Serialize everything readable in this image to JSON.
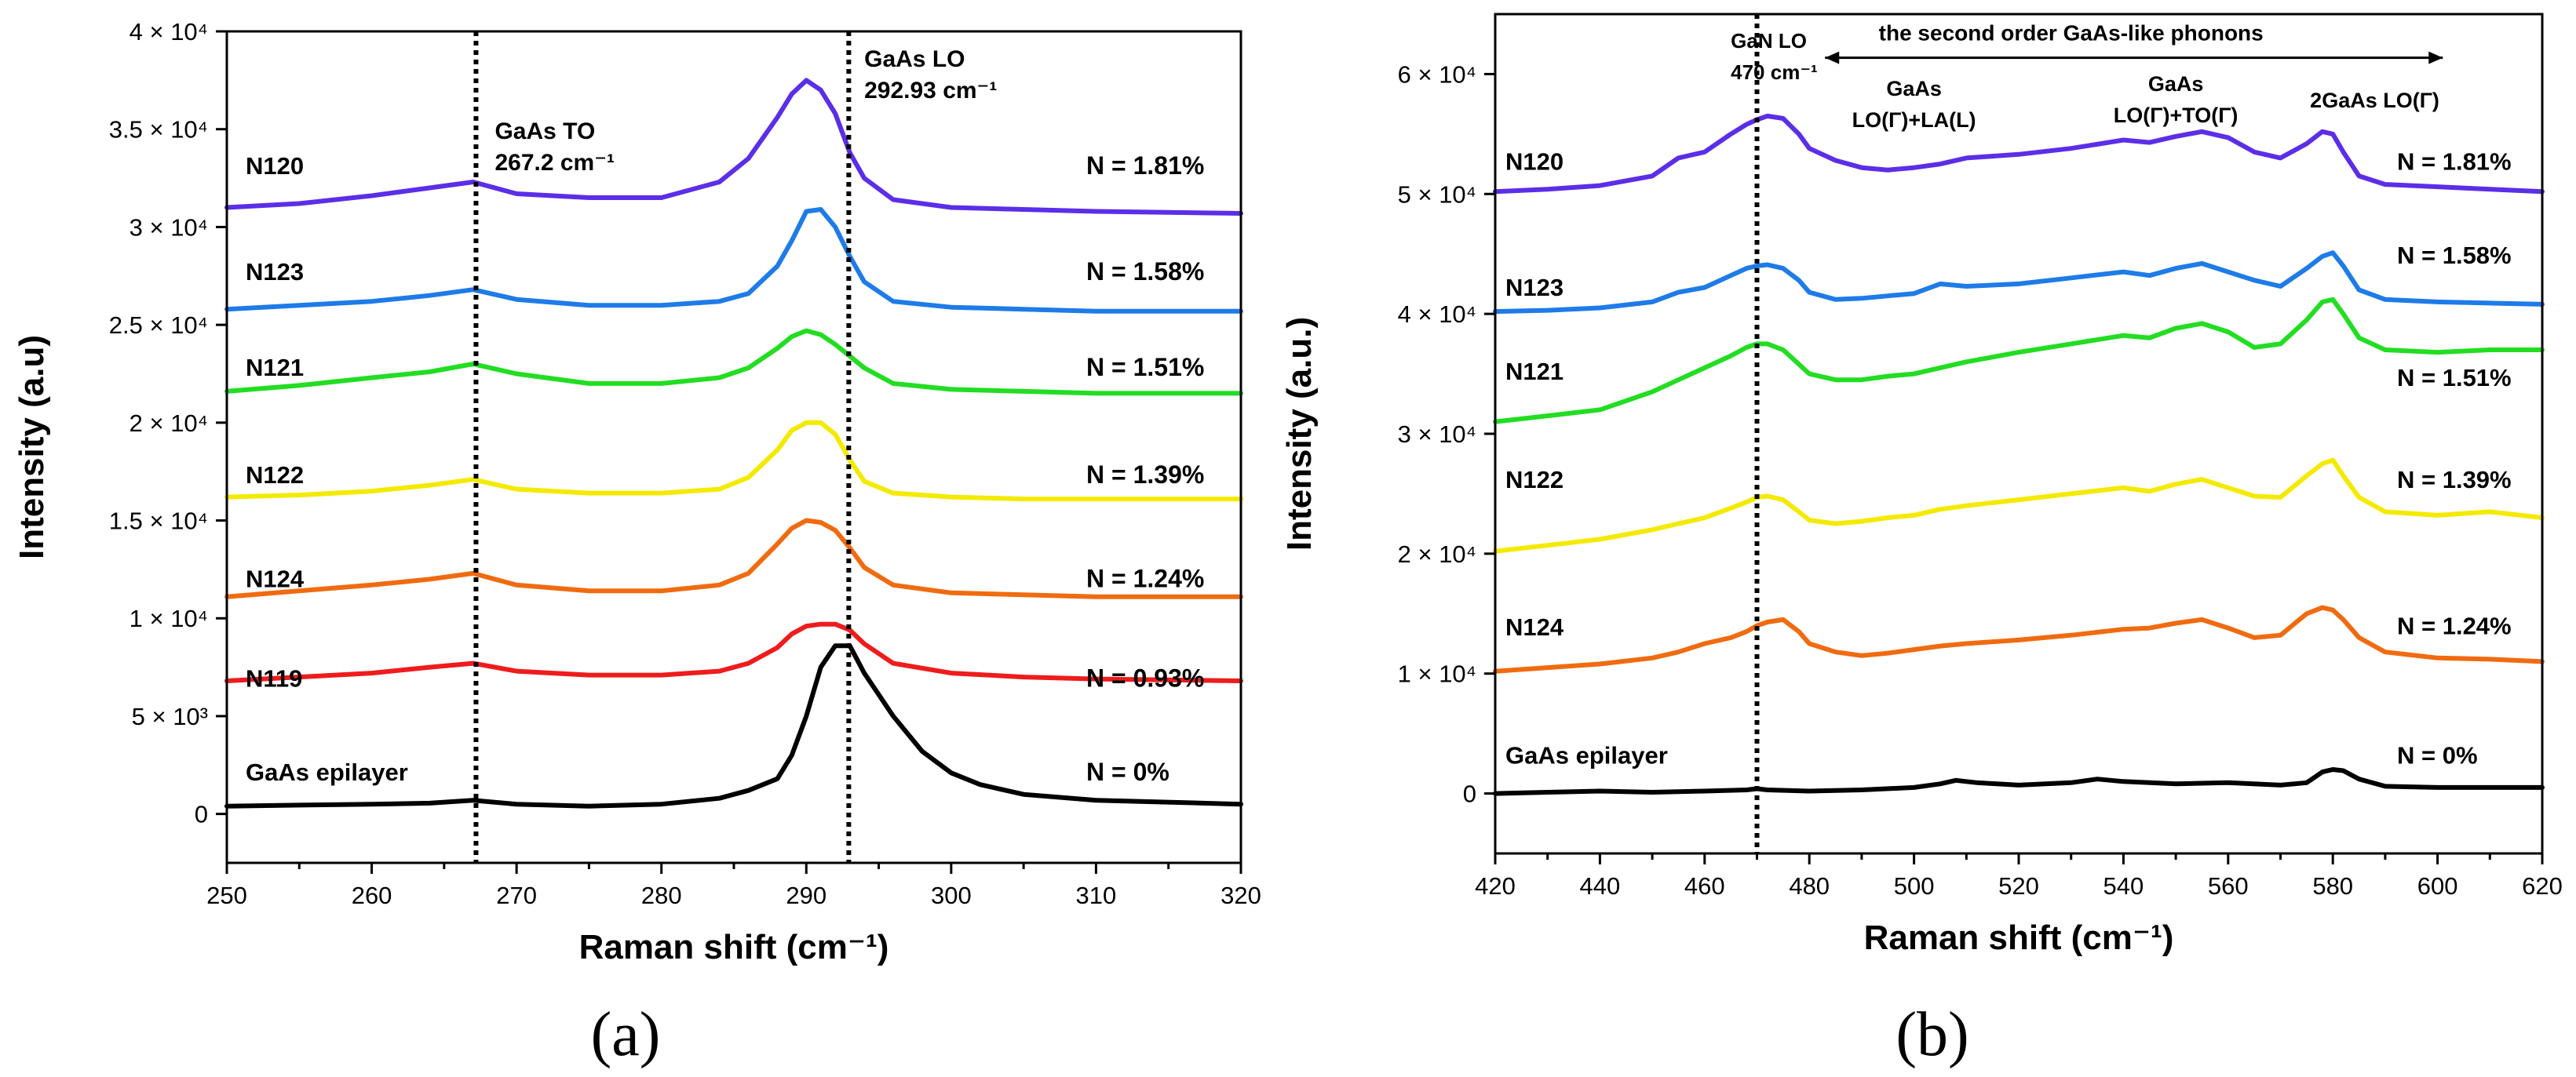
{
  "figure_labels": [
    "(a)",
    "(b)"
  ],
  "chart_data": [
    {
      "type": "line",
      "xlabel": "Raman shift (cm⁻¹)",
      "ylabel": "Intensity (a.u)",
      "xlim": [
        250,
        320
      ],
      "ylim": [
        -2500,
        40000
      ],
      "x_ticks": [
        250,
        260,
        270,
        280,
        290,
        300,
        310,
        320
      ],
      "x_tick_labels": [
        "250",
        "260",
        "270",
        "280",
        "290",
        "300",
        "310",
        "320"
      ],
      "y_ticks": [
        0,
        5000,
        10000,
        15000,
        20000,
        25000,
        30000,
        35000,
        40000
      ],
      "y_tick_labels": [
        "0",
        "5 × 10³",
        "1 × 10⁴",
        "1.5 × 10⁴",
        "2 × 10⁴",
        "2.5 × 10⁴",
        "3 × 10⁴",
        "3.5 × 10⁴",
        "4 × 10⁴"
      ],
      "grid": false,
      "ref_lines": [
        {
          "x": 267.2,
          "label_lines": [
            "GaAs TO",
            "267.2 cm⁻¹"
          ],
          "label_pos": [
            268.5,
            34500
          ]
        },
        {
          "x": 292.93,
          "label_lines": [
            "GaAs LO",
            "292.93 cm⁻¹"
          ],
          "label_pos": [
            294,
            38200
          ]
        }
      ],
      "series": [
        {
          "name": "N120",
          "n_label": "N = 1.81%",
          "color": "#5b2ee8",
          "x": [
            250,
            255,
            260,
            264,
            267,
            270,
            275,
            280,
            284,
            286,
            288,
            289,
            290,
            291,
            292,
            293,
            294,
            296,
            300,
            305,
            310,
            320
          ],
          "y": [
            31000,
            31200,
            31600,
            32000,
            32300,
            31700,
            31500,
            31500,
            32300,
            33500,
            35600,
            36800,
            37500,
            37000,
            35800,
            33800,
            32500,
            31400,
            31000,
            30900,
            30800,
            30700
          ],
          "label_y": 32700,
          "n_label_y": 32700
        },
        {
          "name": "N123",
          "n_label": "N = 1.58%",
          "color": "#1e7be8",
          "x": [
            250,
            255,
            260,
            264,
            267,
            270,
            275,
            280,
            284,
            286,
            288,
            289,
            290,
            291,
            292,
            293,
            294,
            296,
            300,
            305,
            310,
            320
          ],
          "y": [
            25800,
            26000,
            26200,
            26500,
            26800,
            26300,
            26000,
            26000,
            26200,
            26600,
            28000,
            29300,
            30800,
            30900,
            30000,
            28500,
            27200,
            26200,
            25900,
            25800,
            25700,
            25700
          ],
          "label_y": 27300,
          "n_label_y": 27300
        },
        {
          "name": "N121",
          "n_label": "N = 1.51%",
          "color": "#22dd22",
          "x": [
            250,
            255,
            260,
            264,
            267,
            270,
            275,
            280,
            284,
            286,
            288,
            289,
            290,
            291,
            292,
            293,
            294,
            296,
            300,
            305,
            310,
            320
          ],
          "y": [
            21600,
            21900,
            22300,
            22600,
            23000,
            22500,
            22000,
            22000,
            22300,
            22800,
            23800,
            24400,
            24700,
            24500,
            24000,
            23400,
            22800,
            22000,
            21700,
            21600,
            21500,
            21500
          ],
          "label_y": 22400,
          "n_label_y": 22400
        },
        {
          "name": "N122",
          "n_label": "N = 1.39%",
          "color": "#f4ea00",
          "x": [
            250,
            255,
            260,
            264,
            267,
            270,
            275,
            280,
            284,
            286,
            288,
            289,
            290,
            291,
            292,
            293,
            294,
            296,
            300,
            305,
            310,
            320
          ],
          "y": [
            16200,
            16300,
            16500,
            16800,
            17100,
            16600,
            16400,
            16400,
            16600,
            17200,
            18600,
            19600,
            20000,
            20000,
            19400,
            18100,
            17000,
            16400,
            16200,
            16100,
            16100,
            16100
          ],
          "label_y": 16900,
          "n_label_y": 16900
        },
        {
          "name": "N124",
          "n_label": "N = 1.24%",
          "color": "#f06b10",
          "x": [
            250,
            255,
            260,
            264,
            267,
            270,
            275,
            280,
            284,
            286,
            288,
            289,
            290,
            291,
            292,
            293,
            294,
            296,
            300,
            305,
            310,
            320
          ],
          "y": [
            11100,
            11400,
            11700,
            12000,
            12300,
            11700,
            11400,
            11400,
            11700,
            12300,
            13800,
            14600,
            15000,
            14900,
            14500,
            13600,
            12600,
            11700,
            11300,
            11200,
            11100,
            11100
          ],
          "label_y": 11600,
          "n_label_y": 11600
        },
        {
          "name": "N119",
          "n_label": "N = 0.93%",
          "color": "#ee1c1c",
          "x": [
            250,
            255,
            260,
            264,
            267,
            270,
            275,
            280,
            284,
            286,
            288,
            289,
            290,
            291,
            292,
            293,
            294,
            296,
            300,
            305,
            310,
            320
          ],
          "y": [
            6800,
            7000,
            7200,
            7500,
            7700,
            7300,
            7100,
            7100,
            7300,
            7700,
            8500,
            9200,
            9600,
            9700,
            9700,
            9400,
            8700,
            7700,
            7200,
            7000,
            6900,
            6800
          ],
          "label_y": 6500,
          "n_label_y": 6500
        },
        {
          "name": "GaAs epilayer",
          "n_label": "N = 0%",
          "color": "#000000",
          "x": [
            250,
            255,
            260,
            264,
            267,
            270,
            275,
            280,
            284,
            286,
            288,
            289,
            290,
            291,
            292,
            293,
            294,
            296,
            298,
            300,
            302,
            305,
            310,
            320
          ],
          "y": [
            400,
            450,
            500,
            550,
            700,
            500,
            400,
            500,
            800,
            1200,
            1800,
            3000,
            5000,
            7500,
            8600,
            8600,
            7200,
            5000,
            3200,
            2100,
            1500,
            1000,
            700,
            500
          ],
          "label_y": 1700,
          "n_label_y": 1700
        }
      ]
    },
    {
      "type": "line",
      "xlabel": "Raman shift  (cm⁻¹)",
      "ylabel": "Intensity (a.u.)",
      "xlim": [
        420,
        620
      ],
      "ylim": [
        -5000,
        65000
      ],
      "x_ticks": [
        420,
        440,
        460,
        480,
        500,
        520,
        540,
        560,
        580,
        600,
        620
      ],
      "x_tick_labels": [
        "420",
        "440",
        "460",
        "480",
        "500",
        "520",
        "540",
        "560",
        "580",
        "600",
        "620"
      ],
      "y_ticks": [
        0,
        10000,
        20000,
        30000,
        40000,
        50000,
        60000
      ],
      "y_tick_labels": [
        "0",
        "1 × 10⁴",
        "2 × 10⁴",
        "3 × 10⁴",
        "4 × 10⁴",
        "5 × 10⁴",
        "6 × 10⁴"
      ],
      "grid": false,
      "ref_lines": [
        {
          "x": 470,
          "label_lines": [
            "GaN LO",
            "470 cm⁻¹"
          ],
          "label_pos": [
            465,
            62200
          ]
        }
      ],
      "annotations": [
        {
          "text": "the second order GaAs-like phonons",
          "x": 530,
          "y": 62800,
          "arrow_from": 483,
          "arrow_to": 601
        },
        {
          "lines": [
            "GaAs",
            "LO(Γ)+LA(L)"
          ],
          "x": 500,
          "y": 58200
        },
        {
          "lines": [
            "GaAs",
            "LO(Γ)+TO(Γ)"
          ],
          "x": 550,
          "y": 58600
        },
        {
          "lines": [
            "2GaAs LO(Γ)"
          ],
          "x": 588,
          "y": 57200
        }
      ],
      "series": [
        {
          "name": "N120",
          "n_label": "N = 1.81%",
          "color": "#5b2ee8",
          "x": [
            420,
            430,
            440,
            450,
            455,
            460,
            465,
            468,
            470,
            472,
            475,
            478,
            480,
            485,
            490,
            495,
            500,
            505,
            510,
            520,
            530,
            540,
            545,
            550,
            555,
            560,
            565,
            570,
            575,
            578,
            580,
            582,
            585,
            590,
            600,
            610,
            620
          ],
          "y": [
            50200,
            50400,
            50700,
            51500,
            53000,
            53500,
            55000,
            55800,
            56200,
            56500,
            56300,
            55000,
            53800,
            52800,
            52200,
            52000,
            52200,
            52500,
            53000,
            53300,
            53800,
            54500,
            54300,
            54800,
            55200,
            54700,
            53500,
            53000,
            54200,
            55200,
            55000,
            53500,
            51500,
            50800,
            50600,
            50400,
            50200
          ],
          "label_y": 52000,
          "n_label_y": 52000
        },
        {
          "name": "N123",
          "n_label": "N = 1.58%",
          "color": "#1e7be8",
          "x": [
            420,
            430,
            440,
            450,
            455,
            460,
            465,
            468,
            470,
            472,
            475,
            478,
            480,
            485,
            490,
            495,
            500,
            505,
            510,
            520,
            530,
            540,
            545,
            550,
            555,
            560,
            565,
            570,
            575,
            578,
            580,
            582,
            585,
            590,
            600,
            610,
            620
          ],
          "y": [
            40200,
            40300,
            40500,
            41000,
            41800,
            42200,
            43200,
            43800,
            44000,
            44100,
            43800,
            42800,
            41800,
            41200,
            41300,
            41500,
            41700,
            42500,
            42300,
            42500,
            43000,
            43500,
            43200,
            43800,
            44200,
            43500,
            42800,
            42300,
            43800,
            44800,
            45100,
            44000,
            42000,
            41200,
            41000,
            40900,
            40800
          ],
          "label_y": 41500,
          "n_label_y": 44200
        },
        {
          "name": "N121",
          "n_label": "N = 1.51%",
          "color": "#22dd22",
          "x": [
            420,
            430,
            440,
            450,
            455,
            460,
            465,
            468,
            470,
            472,
            475,
            478,
            480,
            485,
            490,
            495,
            500,
            505,
            510,
            520,
            530,
            540,
            545,
            550,
            555,
            560,
            565,
            570,
            575,
            578,
            580,
            582,
            585,
            590,
            600,
            610,
            620
          ],
          "y": [
            31000,
            31500,
            32000,
            33500,
            34500,
            35500,
            36500,
            37200,
            37500,
            37500,
            37000,
            35800,
            35000,
            34500,
            34500,
            34800,
            35000,
            35500,
            36000,
            36800,
            37500,
            38200,
            38000,
            38800,
            39200,
            38500,
            37200,
            37500,
            39500,
            41000,
            41200,
            40000,
            38000,
            37000,
            36800,
            37000,
            37000
          ],
          "label_y": 34500,
          "n_label_y": 34000
        },
        {
          "name": "N122",
          "n_label": "N = 1.39%",
          "color": "#f4ea00",
          "x": [
            420,
            430,
            440,
            450,
            455,
            460,
            465,
            468,
            470,
            472,
            475,
            478,
            480,
            485,
            490,
            495,
            500,
            505,
            510,
            520,
            530,
            540,
            545,
            550,
            555,
            560,
            565,
            570,
            575,
            578,
            580,
            582,
            585,
            590,
            600,
            610,
            620
          ],
          "y": [
            20200,
            20700,
            21200,
            22000,
            22500,
            23000,
            23800,
            24300,
            24700,
            24800,
            24500,
            23500,
            22800,
            22500,
            22700,
            23000,
            23200,
            23700,
            24000,
            24500,
            25000,
            25500,
            25200,
            25800,
            26200,
            25500,
            24800,
            24700,
            26500,
            27500,
            27800,
            26500,
            24700,
            23500,
            23200,
            23500,
            23000
          ],
          "label_y": 25500,
          "n_label_y": 25500
        },
        {
          "name": "N124",
          "n_label": "N = 1.24%",
          "color": "#f06b10",
          "x": [
            420,
            430,
            440,
            450,
            455,
            460,
            465,
            468,
            470,
            472,
            475,
            478,
            480,
            485,
            490,
            495,
            500,
            505,
            510,
            520,
            530,
            540,
            545,
            550,
            555,
            560,
            565,
            570,
            575,
            578,
            580,
            582,
            585,
            590,
            600,
            610,
            620
          ],
          "y": [
            10200,
            10500,
            10800,
            11300,
            11800,
            12500,
            13000,
            13500,
            14000,
            14300,
            14500,
            13500,
            12500,
            11800,
            11500,
            11700,
            12000,
            12300,
            12500,
            12800,
            13200,
            13700,
            13800,
            14200,
            14500,
            13800,
            13000,
            13200,
            15000,
            15500,
            15300,
            14500,
            13000,
            11800,
            11300,
            11200,
            11000
          ],
          "label_y": 13200,
          "n_label_y": 13300
        },
        {
          "name": "GaAs epilayer",
          "n_label": "N = 0%",
          "color": "#000000",
          "x": [
            420,
            430,
            440,
            450,
            460,
            468,
            470,
            472,
            480,
            490,
            500,
            505,
            508,
            512,
            520,
            530,
            535,
            540,
            550,
            560,
            570,
            575,
            578,
            580,
            582,
            585,
            590,
            600,
            610,
            620
          ],
          "y": [
            0,
            100,
            200,
            100,
            200,
            300,
            400,
            300,
            200,
            300,
            500,
            800,
            1100,
            900,
            700,
            900,
            1200,
            1000,
            800,
            900,
            700,
            900,
            1800,
            2000,
            1900,
            1200,
            600,
            500,
            500,
            500
          ],
          "label_y": 2500,
          "n_label_y": 2500
        }
      ]
    }
  ]
}
